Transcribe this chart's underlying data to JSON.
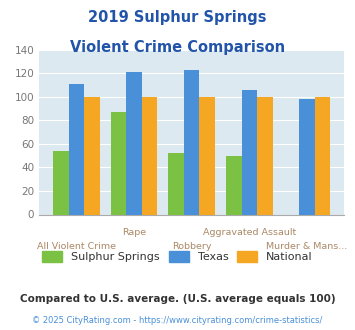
{
  "title_line1": "2019 Sulphur Springs",
  "title_line2": "Violent Crime Comparison",
  "categories": [
    "All Violent Crime",
    "Rape",
    "Robbery",
    "Aggravated Assault",
    "Murder & Mans..."
  ],
  "sulphur_springs": [
    54,
    87,
    52,
    50,
    0
  ],
  "texas": [
    111,
    121,
    123,
    106,
    98
  ],
  "national": [
    100,
    100,
    100,
    100,
    100
  ],
  "bar_colors": {
    "sulphur_springs": "#7bc143",
    "texas": "#4a90d9",
    "national": "#f5a623"
  },
  "ylim": [
    0,
    140
  ],
  "yticks": [
    0,
    20,
    40,
    60,
    80,
    100,
    120,
    140
  ],
  "title_color": "#2255aa",
  "axis_bg_color": "#dce9f0",
  "fig_bg_color": "#ffffff",
  "legend_labels": [
    "Sulphur Springs",
    "Texas",
    "National"
  ],
  "legend_text_color": "#333333",
  "xtick_color": "#aa8866",
  "ytick_color": "#777777",
  "footnote1": "Compared to U.S. average. (U.S. average equals 100)",
  "footnote2": "© 2025 CityRating.com - https://www.cityrating.com/crime-statistics/",
  "footnote1_color": "#333333",
  "footnote2_color": "#4a90d9",
  "grid_color": "#ffffff"
}
